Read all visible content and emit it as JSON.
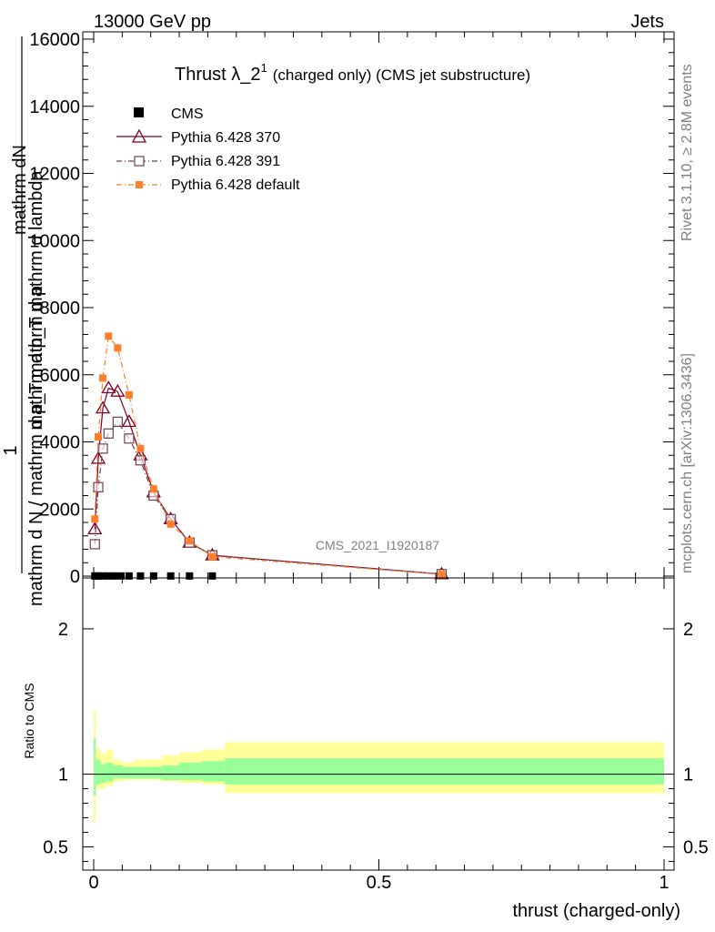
{
  "header": {
    "left": "13000 GeV pp",
    "right": "Jets"
  },
  "side": {
    "rivet": "Rivet 3.1.10, ≥ 2.8M events",
    "mcplots": "mcplots.cern.ch [arXiv:1306.3436]"
  },
  "watermark": "CMS_2021_I1920187",
  "chart_data": [
    {
      "type": "line",
      "title": "Thrust λ_2¹ (charged only) (CMS jet substructure)",
      "title_main": "Thrust λ_2",
      "title_sup": "1",
      "title_rest": "(charged only) (CMS jet substructure)",
      "ylabel_top": "mathrm dN",
      "ylabel_line1": "mathrm d p_T mathrm d lambda",
      "ylabel_num": "1",
      "ylabel_line2": "mathrm d N / mathrm d p_T mathrm d p",
      "xlabel": "thrust (charged-only)",
      "xlim": [
        0,
        1
      ],
      "ylim": [
        0,
        16000
      ],
      "yticks": [
        0,
        2000,
        4000,
        6000,
        8000,
        10000,
        12000,
        14000,
        16000
      ],
      "ytick_labels": [
        "0",
        "2000",
        "4000",
        "6000",
        "8000",
        "10000",
        "12000",
        "14000",
        "16000"
      ],
      "legend": [
        "CMS",
        "Pythia 6.428 370",
        "Pythia 6.428 391",
        "Pythia 6.428 default"
      ],
      "series": [
        {
          "name": "CMS",
          "color": "#000000",
          "x": [
            0.002,
            0.008,
            0.016,
            0.026,
            0.036,
            0.048,
            0.062,
            0.082,
            0.105,
            0.135,
            0.168,
            0.208
          ],
          "y": [
            5,
            5,
            5,
            5,
            5,
            5,
            5,
            5,
            5,
            5,
            5,
            5
          ]
        },
        {
          "name": "Pythia 6.428 370",
          "color": "#800020",
          "x": [
            0.002,
            0.008,
            0.016,
            0.026,
            0.042,
            0.062,
            0.082,
            0.105,
            0.135,
            0.168,
            0.208,
            0.61
          ],
          "y": [
            1400,
            3500,
            5000,
            5600,
            5500,
            4600,
            3600,
            2500,
            1700,
            1000,
            620,
            60
          ]
        },
        {
          "name": "Pythia 6.428 391",
          "color": "#704050",
          "x": [
            0.002,
            0.008,
            0.016,
            0.026,
            0.042,
            0.062,
            0.082,
            0.105,
            0.135,
            0.168,
            0.208,
            0.61
          ],
          "y": [
            950,
            2650,
            3800,
            4250,
            4600,
            4100,
            3450,
            2400,
            1700,
            1000,
            620,
            60
          ]
        },
        {
          "name": "Pythia 6.428 default",
          "color": "#ff7f2a",
          "x": [
            0.002,
            0.008,
            0.016,
            0.026,
            0.042,
            0.062,
            0.082,
            0.105,
            0.135,
            0.168,
            0.208,
            0.61
          ],
          "y": [
            1700,
            4150,
            5900,
            7150,
            6800,
            5400,
            3800,
            2600,
            1550,
            1050,
            580,
            50
          ]
        }
      ]
    },
    {
      "type": "area",
      "ylabel": "Ratio to CMS",
      "xlabel": "thrust (charged-only)",
      "xlim": [
        0,
        1
      ],
      "ylim": [
        0.34,
        2.35
      ],
      "yticks": [
        0.5,
        1,
        2
      ],
      "ytick_labels": [
        "0.5",
        "1",
        "2"
      ],
      "xticks": [
        0,
        0.5,
        1
      ],
      "xtick_labels": [
        "0",
        "0.5",
        "1"
      ],
      "reference_line": 1,
      "bands": {
        "edges": [
          0,
          0.004,
          0.012,
          0.022,
          0.034,
          0.05,
          0.07,
          0.095,
          0.12,
          0.15,
          0.19,
          0.23,
          1.0
        ],
        "yellow_lo": [
          0.67,
          0.9,
          0.9,
          0.92,
          0.95,
          0.96,
          0.96,
          0.96,
          0.95,
          0.94,
          0.93,
          0.87
        ],
        "yellow_hi": [
          1.44,
          1.18,
          1.14,
          1.17,
          1.1,
          1.08,
          1.1,
          1.1,
          1.13,
          1.15,
          1.17,
          1.22
        ],
        "green_lo": [
          0.85,
          0.93,
          0.94,
          0.95,
          0.97,
          0.97,
          0.97,
          0.97,
          0.96,
          0.96,
          0.95,
          0.93
        ],
        "green_hi": [
          1.25,
          1.1,
          1.07,
          1.08,
          1.06,
          1.05,
          1.05,
          1.05,
          1.06,
          1.08,
          1.09,
          1.11
        ]
      }
    }
  ]
}
